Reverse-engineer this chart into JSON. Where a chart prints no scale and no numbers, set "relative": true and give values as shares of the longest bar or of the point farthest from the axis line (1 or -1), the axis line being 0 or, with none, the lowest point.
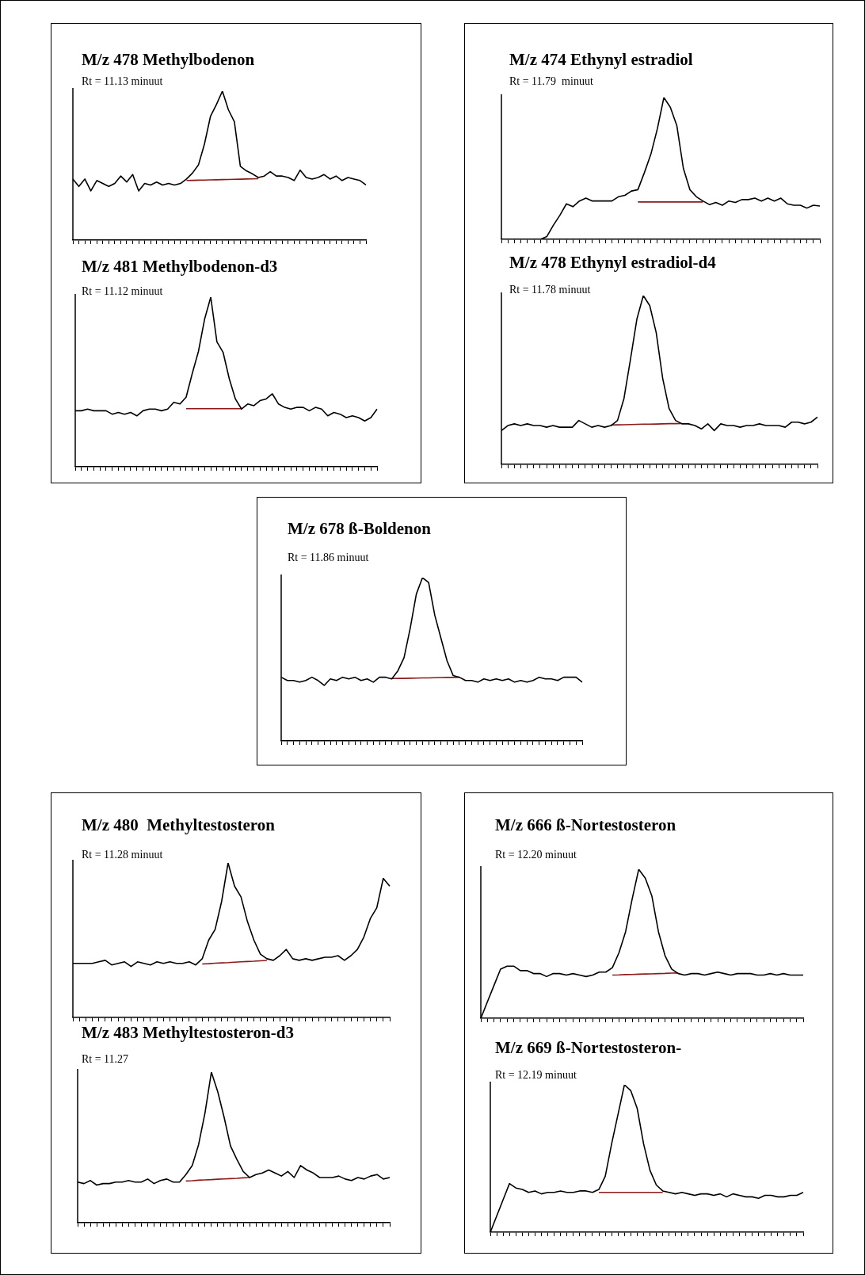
{
  "chart_data": [
    {
      "type": "line",
      "title": "M/z 478 Methylbodenon",
      "subtitle": "Rt = 11.13 minuut",
      "relative": true,
      "legend": false,
      "grid": false,
      "tick_labels": false,
      "marker": "none",
      "line_style": "solid",
      "categories": [
        null,
        null,
        null,
        null,
        null,
        null,
        null,
        null,
        null,
        null,
        null,
        null,
        null,
        null,
        null,
        null,
        null,
        null,
        null,
        null,
        null,
        null,
        null,
        null,
        null,
        null,
        null,
        null,
        null,
        null,
        null,
        null,
        null,
        null,
        null,
        null,
        null,
        null,
        null,
        null,
        null,
        null,
        null,
        null,
        null,
        null,
        null,
        null,
        null,
        null
      ],
      "series": [
        {
          "color": "#000000",
          "values": [
            0.41,
            0.36,
            0.41,
            0.33,
            0.4,
            0.38,
            0.36,
            0.38,
            0.43,
            0.39,
            0.44,
            0.33,
            0.38,
            0.37,
            0.39,
            0.37,
            0.38,
            0.37,
            0.38,
            0.41,
            0.45,
            0.505,
            0.645,
            0.83,
            0.91,
            1,
            0.875,
            0.795,
            0.495,
            0.465,
            0.445,
            0.42,
            0.43,
            0.46,
            0.43,
            0.43,
            0.42,
            0.4,
            0.47,
            0.42,
            0.41,
            0.42,
            0.44,
            0.41,
            0.43,
            0.4,
            0.42,
            0.41,
            0.4,
            0.37
          ]
        },
        {
          "color": "#8b1a1a",
          "values": [
            null,
            null,
            null,
            null,
            null,
            null,
            null,
            null,
            null,
            null,
            null,
            null,
            null,
            null,
            null,
            null,
            null,
            null,
            null,
            0.4,
            0.401,
            0.402,
            0.403,
            0.404,
            0.405,
            0.406,
            0.407,
            0.408,
            0.409,
            0.41,
            0.411,
            0.412,
            null,
            null,
            null,
            null,
            null,
            null,
            null,
            null,
            null,
            null,
            null,
            null,
            null,
            null,
            null,
            null,
            null,
            null
          ]
        }
      ]
    },
    {
      "type": "line",
      "title": "M/z 474 Ethynyl estradiol",
      "subtitle": "Rt = 11.79  minuut",
      "relative": true,
      "legend": false,
      "grid": false,
      "tick_labels": false,
      "marker": "none",
      "line_style": "solid",
      "categories": [
        null,
        null,
        null,
        null,
        null,
        null,
        null,
        null,
        null,
        null,
        null,
        null,
        null,
        null,
        null,
        null,
        null,
        null,
        null,
        null,
        null,
        null,
        null,
        null,
        null,
        null,
        null,
        null,
        null,
        null,
        null,
        null,
        null,
        null,
        null,
        null,
        null,
        null,
        null,
        null,
        null,
        null,
        null,
        null,
        null,
        null,
        null,
        null,
        null,
        null
      ],
      "series": [
        {
          "color": "#000000",
          "values": [
            0,
            0,
            0,
            0,
            0,
            0,
            0,
            0.02,
            0.1,
            0.17,
            0.25,
            0.23,
            0.27,
            0.29,
            0.27,
            0.27,
            0.27,
            0.27,
            0.3,
            0.31,
            0.34,
            0.35,
            0.47,
            0.6,
            0.78,
            1,
            0.93,
            0.8,
            0.5,
            0.35,
            0.3,
            0.27,
            0.245,
            0.26,
            0.24,
            0.27,
            0.26,
            0.28,
            0.28,
            0.29,
            0.27,
            0.29,
            0.27,
            0.29,
            0.25,
            0.24,
            0.24,
            0.22,
            0.24,
            0.235
          ]
        },
        {
          "color": "#8b1a1a",
          "values": [
            null,
            null,
            null,
            null,
            null,
            null,
            null,
            null,
            null,
            null,
            null,
            null,
            null,
            null,
            null,
            null,
            null,
            null,
            null,
            null,
            null,
            0.263,
            0.263,
            0.263,
            0.263,
            0.263,
            0.263,
            0.263,
            0.263,
            0.263,
            0.263,
            0.263,
            null,
            null,
            null,
            null,
            null,
            null,
            null,
            null,
            null,
            null,
            null,
            null,
            null,
            null,
            null,
            null,
            null,
            null
          ]
        }
      ]
    },
    {
      "type": "line",
      "title": "M/z 481 Methylbodenon-d3",
      "subtitle": "Rt = 11.12 minuut",
      "relative": true,
      "legend": false,
      "grid": false,
      "tick_labels": false,
      "marker": "none",
      "line_style": "solid",
      "categories": [
        null,
        null,
        null,
        null,
        null,
        null,
        null,
        null,
        null,
        null,
        null,
        null,
        null,
        null,
        null,
        null,
        null,
        null,
        null,
        null,
        null,
        null,
        null,
        null,
        null,
        null,
        null,
        null,
        null,
        null,
        null,
        null,
        null,
        null,
        null,
        null,
        null,
        null,
        null,
        null,
        null,
        null,
        null,
        null,
        null,
        null,
        null,
        null,
        null,
        null
      ],
      "series": [
        {
          "color": "#000000",
          "values": [
            0.33,
            0.33,
            0.34,
            0.33,
            0.33,
            0.33,
            0.31,
            0.32,
            0.31,
            0.32,
            0.3,
            0.33,
            0.34,
            0.34,
            0.33,
            0.34,
            0.38,
            0.37,
            0.41,
            0.55,
            0.68,
            0.87,
            1,
            0.737,
            0.675,
            0.52,
            0.4,
            0.34,
            0.37,
            0.36,
            0.39,
            0.4,
            0.43,
            0.37,
            0.35,
            0.34,
            0.35,
            0.35,
            0.33,
            0.35,
            0.34,
            0.3,
            0.32,
            0.31,
            0.29,
            0.3,
            0.29,
            0.27,
            0.29,
            0.34
          ]
        },
        {
          "color": "#8b1a1a",
          "values": [
            null,
            null,
            null,
            null,
            null,
            null,
            null,
            null,
            null,
            null,
            null,
            null,
            null,
            null,
            null,
            null,
            null,
            null,
            0.342,
            0.342,
            0.342,
            0.342,
            0.342,
            0.342,
            0.342,
            0.342,
            0.342,
            0.342,
            null,
            null,
            null,
            null,
            null,
            null,
            null,
            null,
            null,
            null,
            null,
            null,
            null,
            null,
            null,
            null,
            null,
            null,
            null,
            null,
            null,
            null
          ]
        }
      ]
    },
    {
      "type": "line",
      "title": "M/z 478 Ethynyl estradiol-d4",
      "subtitle": "Rt = 11.78 minuut",
      "relative": true,
      "legend": false,
      "grid": false,
      "tick_labels": false,
      "marker": "none",
      "line_style": "solid",
      "categories": [
        null,
        null,
        null,
        null,
        null,
        null,
        null,
        null,
        null,
        null,
        null,
        null,
        null,
        null,
        null,
        null,
        null,
        null,
        null,
        null,
        null,
        null,
        null,
        null,
        null,
        null,
        null,
        null,
        null,
        null,
        null,
        null,
        null,
        null,
        null,
        null,
        null,
        null,
        null,
        null,
        null,
        null,
        null,
        null,
        null,
        null,
        null,
        null,
        null,
        null
      ],
      "series": [
        {
          "color": "#000000",
          "values": [
            0.2,
            0.23,
            0.24,
            0.23,
            0.24,
            0.23,
            0.23,
            0.22,
            0.23,
            0.22,
            0.22,
            0.22,
            0.26,
            0.24,
            0.22,
            0.23,
            0.22,
            0.23,
            0.26,
            0.39,
            0.62,
            0.86,
            1,
            0.94,
            0.78,
            0.51,
            0.33,
            0.26,
            0.24,
            0.24,
            0.23,
            0.21,
            0.24,
            0.2,
            0.24,
            0.23,
            0.23,
            0.22,
            0.23,
            0.23,
            0.24,
            0.23,
            0.23,
            0.23,
            0.22,
            0.25,
            0.25,
            0.24,
            0.25,
            0.28
          ]
        },
        {
          "color": "#8b1a1a",
          "values": [
            null,
            null,
            null,
            null,
            null,
            null,
            null,
            null,
            null,
            null,
            null,
            null,
            null,
            null,
            null,
            null,
            null,
            0.233,
            0.234,
            0.235,
            0.236,
            0.237,
            0.238,
            0.238,
            0.239,
            0.24,
            0.241,
            0.241,
            0.242,
            null,
            null,
            null,
            null,
            null,
            null,
            null,
            null,
            null,
            null,
            null,
            null,
            null,
            null,
            null,
            null,
            null,
            null,
            null,
            null,
            null
          ]
        }
      ]
    },
    {
      "type": "line",
      "title": "M/z 678 ß-Boldenon",
      "subtitle": "Rt = 11.86 minuut",
      "relative": true,
      "legend": false,
      "grid": false,
      "tick_labels": false,
      "marker": "none",
      "line_style": "solid",
      "categories": [
        null,
        null,
        null,
        null,
        null,
        null,
        null,
        null,
        null,
        null,
        null,
        null,
        null,
        null,
        null,
        null,
        null,
        null,
        null,
        null,
        null,
        null,
        null,
        null,
        null,
        null,
        null,
        null,
        null,
        null,
        null,
        null,
        null,
        null,
        null,
        null,
        null,
        null,
        null,
        null,
        null,
        null,
        null,
        null,
        null,
        null,
        null,
        null,
        null,
        null
      ],
      "series": [
        {
          "color": "#000000",
          "values": [
            0.39,
            0.37,
            0.37,
            0.36,
            0.37,
            0.39,
            0.37,
            0.34,
            0.38,
            0.37,
            0.39,
            0.38,
            0.39,
            0.37,
            0.38,
            0.36,
            0.39,
            0.39,
            0.38,
            0.43,
            0.51,
            0.69,
            0.9,
            1,
            0.97,
            0.77,
            0.63,
            0.49,
            0.4,
            0.39,
            0.37,
            0.37,
            0.36,
            0.38,
            0.37,
            0.38,
            0.37,
            0.38,
            0.36,
            0.37,
            0.36,
            0.37,
            0.39,
            0.38,
            0.38,
            0.37,
            0.39,
            0.39,
            0.39,
            0.36
          ]
        },
        {
          "color": "#8b1a1a",
          "values": [
            null,
            null,
            null,
            null,
            null,
            null,
            null,
            null,
            null,
            null,
            null,
            null,
            null,
            null,
            null,
            null,
            null,
            null,
            0.382,
            0.383,
            0.383,
            0.384,
            0.385,
            0.386,
            0.386,
            0.387,
            0.388,
            0.389,
            0.389,
            0.39,
            null,
            null,
            null,
            null,
            null,
            null,
            null,
            null,
            null,
            null,
            null,
            null,
            null,
            null,
            null,
            null,
            null,
            null,
            null,
            null
          ]
        }
      ]
    },
    {
      "type": "line",
      "title": "M/z 480  Methyltestosteron",
      "subtitle": "Rt = 11.28 minuut",
      "relative": true,
      "legend": false,
      "grid": false,
      "tick_labels": false,
      "marker": "none",
      "line_style": "solid",
      "categories": [
        null,
        null,
        null,
        null,
        null,
        null,
        null,
        null,
        null,
        null,
        null,
        null,
        null,
        null,
        null,
        null,
        null,
        null,
        null,
        null,
        null,
        null,
        null,
        null,
        null,
        null,
        null,
        null,
        null,
        null,
        null,
        null,
        null,
        null,
        null,
        null,
        null,
        null,
        null,
        null,
        null,
        null,
        null,
        null,
        null,
        null,
        null,
        null,
        null,
        null
      ],
      "series": [
        {
          "color": "#000000",
          "values": [
            0.35,
            0.35,
            0.35,
            0.35,
            0.36,
            0.37,
            0.34,
            0.35,
            0.36,
            0.33,
            0.36,
            0.35,
            0.34,
            0.36,
            0.35,
            0.36,
            0.35,
            0.35,
            0.36,
            0.34,
            0.38,
            0.5,
            0.57,
            0.75,
            1,
            0.85,
            0.78,
            0.62,
            0.5,
            0.41,
            0.38,
            0.37,
            0.4,
            0.44,
            0.38,
            0.37,
            0.38,
            0.37,
            0.38,
            0.39,
            0.39,
            0.4,
            0.37,
            0.4,
            0.44,
            0.52,
            0.64,
            0.71,
            0.9,
            0.85
          ]
        },
        {
          "color": "#8b1a1a",
          "values": [
            null,
            null,
            null,
            null,
            null,
            null,
            null,
            null,
            null,
            null,
            null,
            null,
            null,
            null,
            null,
            null,
            null,
            null,
            null,
            null,
            0.346,
            0.348,
            0.351,
            0.353,
            0.355,
            0.358,
            0.36,
            0.362,
            0.364,
            0.367,
            0.369,
            null,
            null,
            null,
            null,
            null,
            null,
            null,
            null,
            null,
            null,
            null,
            null,
            null,
            null,
            null,
            null,
            null,
            null,
            null
          ]
        }
      ]
    },
    {
      "type": "line",
      "title": "M/z 666 ß-Nortestosteron",
      "subtitle": "Rt = 12.20 minuut",
      "relative": true,
      "legend": false,
      "grid": false,
      "tick_labels": false,
      "marker": "none",
      "line_style": "solid",
      "categories": [
        null,
        null,
        null,
        null,
        null,
        null,
        null,
        null,
        null,
        null,
        null,
        null,
        null,
        null,
        null,
        null,
        null,
        null,
        null,
        null,
        null,
        null,
        null,
        null,
        null,
        null,
        null,
        null,
        null,
        null,
        null,
        null,
        null,
        null,
        null,
        null,
        null,
        null,
        null,
        null,
        null,
        null,
        null,
        null,
        null,
        null,
        null,
        null,
        null,
        null
      ],
      "series": [
        {
          "color": "#000000",
          "values": [
            0,
            0.11,
            0.22,
            0.33,
            0.35,
            0.35,
            0.32,
            0.32,
            0.3,
            0.3,
            0.28,
            0.3,
            0.3,
            0.29,
            0.3,
            0.29,
            0.28,
            0.29,
            0.31,
            0.31,
            0.34,
            0.44,
            0.58,
            0.8,
            1,
            0.94,
            0.82,
            0.58,
            0.42,
            0.33,
            0.3,
            0.29,
            0.3,
            0.3,
            0.29,
            0.3,
            0.31,
            0.3,
            0.29,
            0.3,
            0.3,
            0.3,
            0.29,
            0.29,
            0.3,
            0.29,
            0.3,
            0.29,
            0.29,
            0.29
          ]
        },
        {
          "color": "#8b1a1a",
          "values": [
            null,
            null,
            null,
            null,
            null,
            null,
            null,
            null,
            null,
            null,
            null,
            null,
            null,
            null,
            null,
            null,
            null,
            null,
            null,
            null,
            0.29,
            0.291,
            0.293,
            0.294,
            0.296,
            0.297,
            0.298,
            0.3,
            0.301,
            0.303,
            0.304,
            null,
            null,
            null,
            null,
            null,
            null,
            null,
            null,
            null,
            null,
            null,
            null,
            null,
            null,
            null,
            null,
            null,
            null,
            null
          ]
        }
      ]
    },
    {
      "type": "line",
      "title": "M/z 483 Methyltestosteron-d3",
      "subtitle": "Rt = 11.27",
      "relative": true,
      "legend": false,
      "grid": false,
      "tick_labels": false,
      "marker": "none",
      "line_style": "solid",
      "categories": [
        null,
        null,
        null,
        null,
        null,
        null,
        null,
        null,
        null,
        null,
        null,
        null,
        null,
        null,
        null,
        null,
        null,
        null,
        null,
        null,
        null,
        null,
        null,
        null,
        null,
        null,
        null,
        null,
        null,
        null,
        null,
        null,
        null,
        null,
        null,
        null,
        null,
        null,
        null,
        null,
        null,
        null,
        null,
        null,
        null,
        null,
        null,
        null,
        null,
        null
      ],
      "series": [
        {
          "color": "#000000",
          "values": [
            0.27,
            0.26,
            0.28,
            0.25,
            0.26,
            0.26,
            0.27,
            0.27,
            0.28,
            0.27,
            0.27,
            0.29,
            0.26,
            0.28,
            0.29,
            0.27,
            0.27,
            0.32,
            0.38,
            0.52,
            0.73,
            1,
            0.87,
            0.7,
            0.51,
            0.42,
            0.34,
            0.3,
            0.32,
            0.33,
            0.35,
            0.33,
            0.31,
            0.34,
            0.3,
            0.38,
            0.35,
            0.33,
            0.3,
            0.3,
            0.3,
            0.31,
            0.29,
            0.28,
            0.3,
            0.29,
            0.31,
            0.32,
            0.29,
            0.3
          ]
        },
        {
          "color": "#8b1a1a",
          "values": [
            null,
            null,
            null,
            null,
            null,
            null,
            null,
            null,
            null,
            null,
            null,
            null,
            null,
            null,
            null,
            null,
            null,
            0.277,
            0.279,
            0.282,
            0.284,
            0.286,
            0.289,
            0.291,
            0.293,
            0.295,
            0.298,
            0.3,
            null,
            null,
            null,
            null,
            null,
            null,
            null,
            null,
            null,
            null,
            null,
            null,
            null,
            null,
            null,
            null,
            null,
            null,
            null,
            null,
            null,
            null
          ]
        }
      ]
    },
    {
      "type": "line",
      "title": "M/z 669 ß-Nortestosteron-",
      "subtitle": "Rt = 12.19 minuut",
      "relative": true,
      "legend": false,
      "grid": false,
      "tick_labels": false,
      "marker": "none",
      "line_style": "solid",
      "categories": [
        null,
        null,
        null,
        null,
        null,
        null,
        null,
        null,
        null,
        null,
        null,
        null,
        null,
        null,
        null,
        null,
        null,
        null,
        null,
        null,
        null,
        null,
        null,
        null,
        null,
        null,
        null,
        null,
        null,
        null,
        null,
        null,
        null,
        null,
        null,
        null,
        null,
        null,
        null,
        null,
        null,
        null,
        null,
        null,
        null,
        null,
        null,
        null,
        null,
        null
      ],
      "series": [
        {
          "color": "#000000",
          "values": [
            0,
            0.11,
            0.22,
            0.33,
            0.3,
            0.29,
            0.27,
            0.28,
            0.26,
            0.27,
            0.27,
            0.28,
            0.27,
            0.27,
            0.28,
            0.28,
            0.27,
            0.29,
            0.38,
            0.6,
            0.8,
            1,
            0.96,
            0.84,
            0.6,
            0.42,
            0.32,
            0.28,
            0.27,
            0.26,
            0.27,
            0.26,
            0.25,
            0.26,
            0.26,
            0.25,
            0.26,
            0.24,
            0.26,
            0.25,
            0.24,
            0.24,
            0.23,
            0.25,
            0.25,
            0.24,
            0.24,
            0.25,
            0.25,
            0.27
          ]
        },
        {
          "color": "#8b1a1a",
          "values": [
            null,
            null,
            null,
            null,
            null,
            null,
            null,
            null,
            null,
            null,
            null,
            null,
            null,
            null,
            null,
            null,
            null,
            0.27,
            0.27,
            0.27,
            0.27,
            0.27,
            0.27,
            0.27,
            0.27,
            0.27,
            0.27,
            0.27,
            null,
            null,
            null,
            null,
            null,
            null,
            null,
            null,
            null,
            null,
            null,
            null,
            null,
            null,
            null,
            null,
            null,
            null,
            null,
            null,
            null,
            null
          ]
        }
      ]
    }
  ]
}
